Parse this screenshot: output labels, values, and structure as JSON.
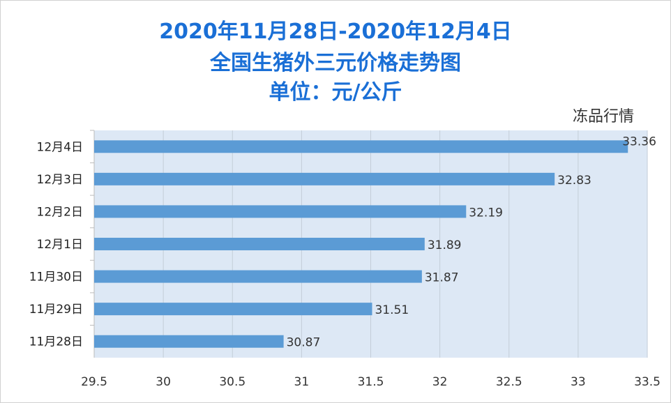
{
  "chart_data": {
    "type": "bar",
    "orientation": "horizontal",
    "title": [
      "2020年11月28日-2020年12月4日",
      "全国生猪外三元价格走势图",
      "单位：元/公斤"
    ],
    "categories": [
      "12月4日",
      "12月3日",
      "12月2日",
      "12月1日",
      "11月30日",
      "11月29日",
      "11月28日"
    ],
    "values": [
      33.36,
      32.83,
      32.19,
      31.89,
      31.87,
      31.51,
      30.87
    ],
    "data_labels": [
      "33.36",
      "32.83",
      "32.19",
      "31.89",
      "31.87",
      "31.51",
      "30.87"
    ],
    "xlim": [
      29.5,
      33.5
    ],
    "xticks": [
      "29.5",
      "30",
      "30.5",
      "31",
      "31.5",
      "32",
      "32.5",
      "33",
      "33.5"
    ],
    "xlabel": "",
    "ylabel": "",
    "grid": "vertical",
    "legend": "none",
    "colors": {
      "bar": "#5b9bd5",
      "plot_bg": "#dde8f5",
      "title": "#1a6fd6"
    }
  },
  "watermark": "冻品行情"
}
